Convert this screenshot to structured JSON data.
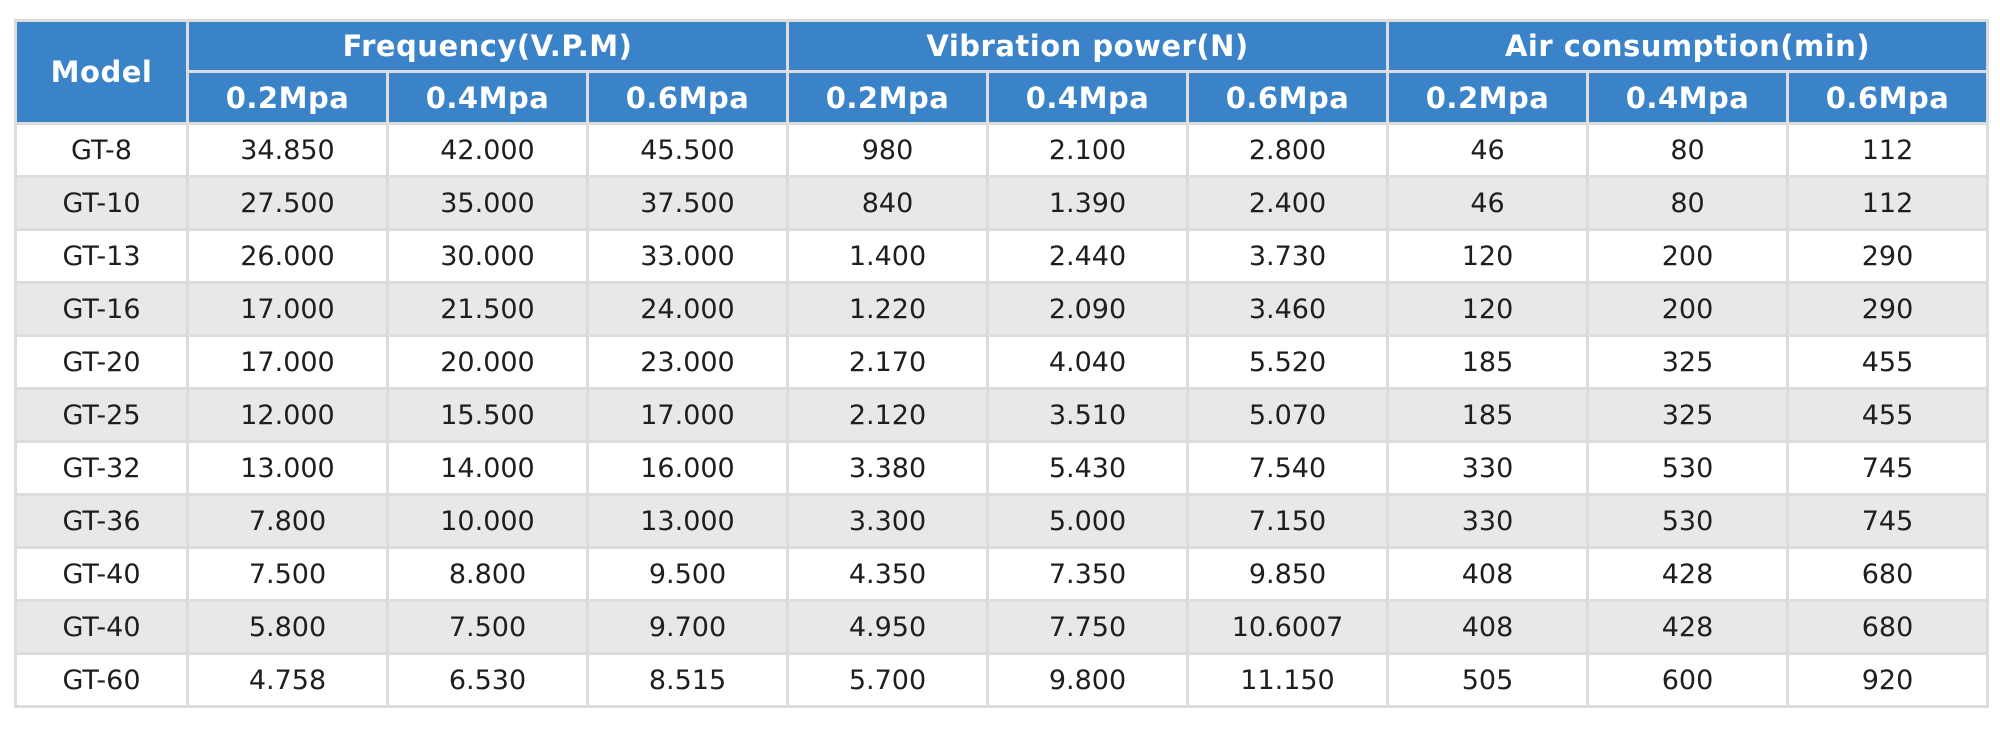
{
  "table": {
    "model_header": "Model",
    "groups": [
      {
        "label": "Frequency(V.P.M)",
        "pressures": [
          "0.2Mpa",
          "0.4Mpa",
          "0.6Mpa"
        ]
      },
      {
        "label": "Vibration power(N)",
        "pressures": [
          "0.2Mpa",
          "0.4Mpa",
          "0.6Mpa"
        ]
      },
      {
        "label": "Air consumption(min)",
        "pressures": [
          "0.2Mpa",
          "0.4Mpa",
          "0.6Mpa"
        ]
      }
    ],
    "rows": [
      [
        "GT-8",
        "34.850",
        "42.000",
        "45.500",
        "980",
        "2.100",
        "2.800",
        "46",
        "80",
        "112"
      ],
      [
        "GT-10",
        "27.500",
        "35.000",
        "37.500",
        "840",
        "1.390",
        "2.400",
        "46",
        "80",
        "112"
      ],
      [
        "GT-13",
        "26.000",
        "30.000",
        "33.000",
        "1.400",
        "2.440",
        "3.730",
        "120",
        "200",
        "290"
      ],
      [
        "GT-16",
        "17.000",
        "21.500",
        "24.000",
        "1.220",
        "2.090",
        "3.460",
        "120",
        "200",
        "290"
      ],
      [
        "GT-20",
        "17.000",
        "20.000",
        "23.000",
        "2.170",
        "4.040",
        "5.520",
        "185",
        "325",
        "455"
      ],
      [
        "GT-25",
        "12.000",
        "15.500",
        "17.000",
        "2.120",
        "3.510",
        "5.070",
        "185",
        "325",
        "455"
      ],
      [
        "GT-32",
        "13.000",
        "14.000",
        "16.000",
        "3.380",
        "5.430",
        "7.540",
        "330",
        "530",
        "745"
      ],
      [
        "GT-36",
        "7.800",
        "10.000",
        "13.000",
        "3.300",
        "5.000",
        "7.150",
        "330",
        "530",
        "745"
      ],
      [
        "GT-40",
        "7.500",
        "8.800",
        "9.500",
        "4.350",
        "7.350",
        "9.850",
        "408",
        "428",
        "680"
      ],
      [
        "GT-40",
        "5.800",
        "7.500",
        "9.700",
        "4.950",
        "7.750",
        "10.6007",
        "408",
        "428",
        "680"
      ],
      [
        "GT-60",
        "4.758",
        "6.530",
        "8.515",
        "5.700",
        "9.800",
        "11.150",
        "505",
        "600",
        "920"
      ]
    ],
    "colors": {
      "header_bg": "#3a83c9",
      "header_text": "#ffffff",
      "stripe_bg": "#e8e8e8",
      "border": "#dcdcdc"
    }
  }
}
